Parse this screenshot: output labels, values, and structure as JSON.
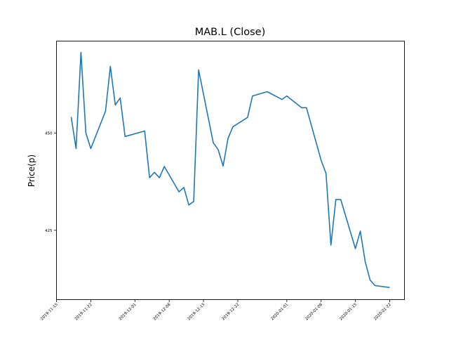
{
  "chart_data": {
    "type": "line",
    "title": "MAB.L (Close)",
    "xlabel": "",
    "ylabel": "Price(p)",
    "xlim": [
      "2019-11-15",
      "2020-01-25"
    ],
    "ylim": [
      407.2,
      473.6
    ],
    "grid": false,
    "x_ticks": [
      "2019-11-15",
      "2019-11-22",
      "2019-12-01",
      "2019-12-08",
      "2019-12-15",
      "2019-12-22",
      "2020-01-01",
      "2020-01-08",
      "2020-01-15",
      "2020-01-22"
    ],
    "y_ticks": [
      425,
      450
    ],
    "color": "#1f77b4",
    "series": [
      {
        "name": "Close",
        "x": [
          "2019-11-18",
          "2019-11-19",
          "2019-11-20",
          "2019-11-21",
          "2019-11-22",
          "2019-11-25",
          "2019-11-26",
          "2019-11-27",
          "2019-11-28",
          "2019-11-29",
          "2019-12-03",
          "2019-12-04",
          "2019-12-05",
          "2019-12-06",
          "2019-12-07",
          "2019-12-10",
          "2019-12-11",
          "2019-12-12",
          "2019-12-13",
          "2019-12-14",
          "2019-12-17",
          "2019-12-18",
          "2019-12-19",
          "2019-12-20",
          "2019-12-21",
          "2019-12-24",
          "2019-12-25",
          "2019-12-28",
          "2019-12-31",
          "2020-01-01",
          "2020-01-04",
          "2020-01-05",
          "2020-01-08",
          "2020-01-09",
          "2020-01-10",
          "2020-01-11",
          "2020-01-12",
          "2020-01-15",
          "2020-01-16",
          "2020-01-17",
          "2020-01-18",
          "2020-01-19",
          "2020-01-22"
        ],
        "values": [
          454.1,
          446.0,
          470.7,
          450.0,
          446.0,
          455.6,
          467.1,
          457.2,
          459.0,
          449.1,
          450.5,
          438.5,
          439.9,
          438.5,
          441.4,
          434.9,
          436.0,
          431.5,
          432.4,
          466.2,
          447.5,
          445.7,
          441.5,
          448.6,
          451.6,
          454.0,
          459.5,
          460.6,
          458.6,
          459.5,
          456.5,
          456.5,
          443.0,
          439.6,
          421.2,
          432.9,
          432.9,
          420.3,
          424.8,
          416.9,
          412.2,
          410.8,
          410.3
        ]
      }
    ]
  }
}
